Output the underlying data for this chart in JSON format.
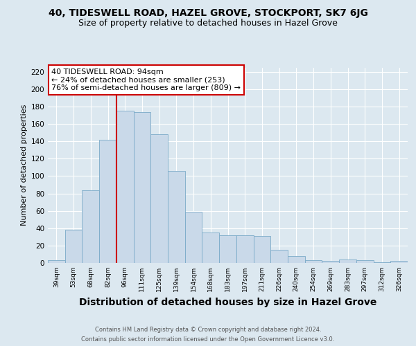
{
  "title1": "40, TIDESWELL ROAD, HAZEL GROVE, STOCKPORT, SK7 6JG",
  "title2": "Size of property relative to detached houses in Hazel Grove",
  "xlabel": "Distribution of detached houses by size in Hazel Grove",
  "ylabel": "Number of detached properties",
  "footer1": "Contains HM Land Registry data © Crown copyright and database right 2024.",
  "footer2": "Contains public sector information licensed under the Open Government Licence v3.0.",
  "categories": [
    "39sqm",
    "53sqm",
    "68sqm",
    "82sqm",
    "96sqm",
    "111sqm",
    "125sqm",
    "139sqm",
    "154sqm",
    "168sqm",
    "183sqm",
    "197sqm",
    "211sqm",
    "226sqm",
    "240sqm",
    "254sqm",
    "269sqm",
    "283sqm",
    "297sqm",
    "312sqm",
    "326sqm"
  ],
  "values": [
    3,
    38,
    84,
    142,
    175,
    174,
    148,
    106,
    59,
    35,
    32,
    32,
    31,
    15,
    8,
    3,
    2,
    4,
    3,
    1,
    2
  ],
  "bar_color": "#c9d9e9",
  "bar_edge_color": "#7aaac8",
  "vline_label": "40 TIDESWELL ROAD: 94sqm",
  "annotation_line1": "← 24% of detached houses are smaller (253)",
  "annotation_line2": "76% of semi-detached houses are larger (809) →",
  "annotation_box_color": "#ffffff",
  "annotation_box_edge": "#cc0000",
  "vline_color": "#cc0000",
  "vline_position": 3.5,
  "ylim": [
    0,
    225
  ],
  "yticks": [
    0,
    20,
    40,
    60,
    80,
    100,
    120,
    140,
    160,
    180,
    200,
    220
  ],
  "background_color": "#dce8f0",
  "plot_bg_color": "#dce8f0",
  "title1_fontsize": 10,
  "title2_fontsize": 9,
  "xlabel_fontsize": 10,
  "ylabel_fontsize": 8,
  "annotation_fontsize": 8
}
